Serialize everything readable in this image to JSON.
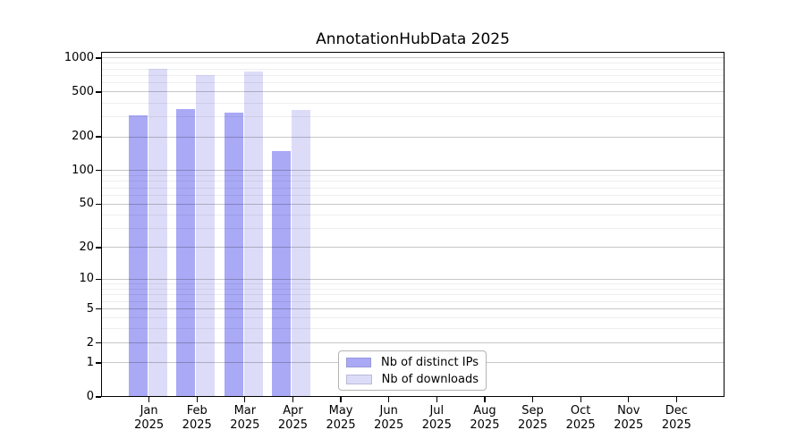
{
  "chart_data": {
    "type": "bar",
    "title": "AnnotationHubData 2025",
    "months": [
      "Jan",
      "Feb",
      "Mar",
      "Apr",
      "May",
      "Jun",
      "Jul",
      "Aug",
      "Sep",
      "Oct",
      "Nov",
      "Dec"
    ],
    "year_label": "2025",
    "series": [
      {
        "name": "Nb of distinct IPs",
        "color": "#a9a9f6",
        "values": [
          312,
          355,
          325,
          150,
          null,
          null,
          null,
          null,
          null,
          null,
          null,
          null
        ]
      },
      {
        "name": "Nb of downloads",
        "color": "#dcdcf9",
        "values": [
          800,
          700,
          760,
          348,
          null,
          null,
          null,
          null,
          null,
          null,
          null,
          null
        ]
      }
    ],
    "yscale": "log1p",
    "yticks": [
      0,
      1,
      2,
      5,
      10,
      20,
      50,
      100,
      200,
      500,
      1000
    ],
    "ylim": [
      0,
      1135
    ],
    "grid": true,
    "legend_position": "lower center",
    "colors": {
      "background": "#ffffff",
      "spine": "#000000",
      "major_grid": "#c6c6c6",
      "minor_grid": "#eeeeee"
    }
  }
}
